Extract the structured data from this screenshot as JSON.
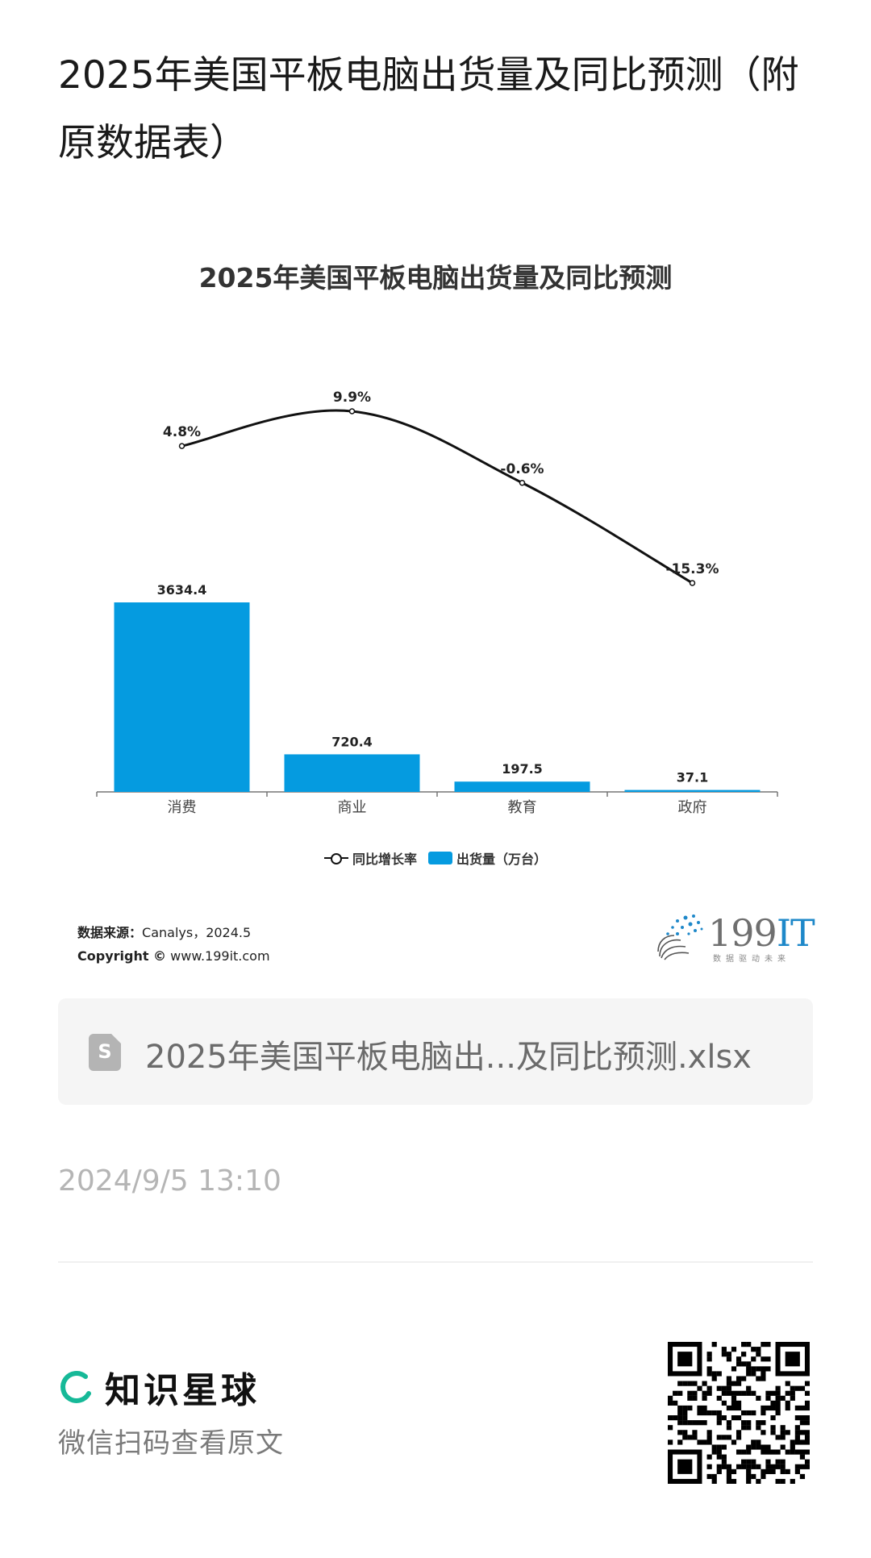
{
  "page": {
    "title": "2025年美国平板电脑出货量及同比预测（附原数据表）"
  },
  "chart_data": {
    "type": "bar",
    "title": "2025年美国平板电脑出货量及同比预测",
    "categories": [
      "消费",
      "商业",
      "教育",
      "政府"
    ],
    "series": [
      {
        "name": "出货量（万台）",
        "type": "bar",
        "values": [
          3634.4,
          720.4,
          197.5,
          37.1
        ],
        "labels": [
          "3634.4",
          "720.4",
          "197.5",
          "37.1"
        ],
        "color": "#059be0"
      },
      {
        "name": "同比增长率",
        "type": "line",
        "values": [
          4.8,
          9.9,
          -0.6,
          -15.3
        ],
        "labels": [
          "4.8%",
          "9.9%",
          "-0.6%",
          "-15.3%"
        ],
        "color": "#111111"
      }
    ],
    "xlabel": "",
    "ylabel": "",
    "legend_position": "bottom-center",
    "grid": false
  },
  "source": {
    "label": "数据来源：",
    "text": "Canalys，2024.5",
    "copyright_label": "Copyright ©",
    "copyright_text": "www.199it.com"
  },
  "brand": {
    "name_num": "199",
    "name_it": "IT",
    "subtitle": "数据驱动未来",
    "accent": "#1e88c9"
  },
  "file": {
    "icon": "spreadsheet-icon",
    "icon_letter": "S",
    "name": "2025年美国平板电脑出...及同比预测.xlsx"
  },
  "meta": {
    "timestamp": "2024/9/5 13:10"
  },
  "footer": {
    "app_name": "知识星球",
    "scan_hint": "微信扫码查看原文",
    "brand_color": "#16b998"
  }
}
